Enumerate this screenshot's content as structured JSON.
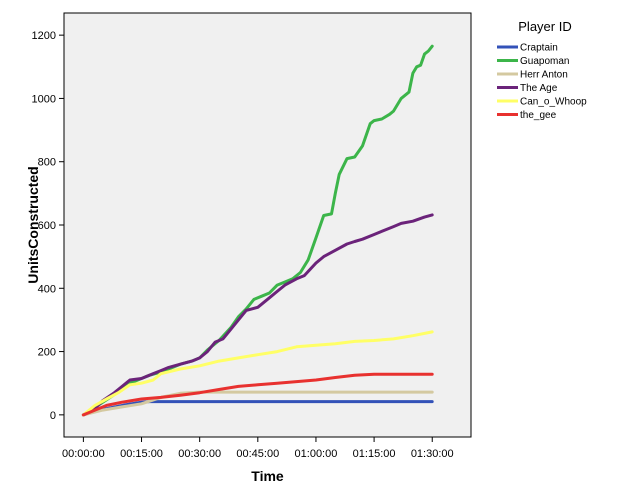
{
  "chart_data": {
    "type": "line",
    "xlabel": "Time",
    "ylabel": "UnitsConstructed",
    "x_ticks": [
      "00:00:00",
      "00:15:00",
      "00:30:00",
      "00:45:00",
      "01:00:00",
      "01:15:00",
      "01:30:00"
    ],
    "x_tick_minutes": [
      0,
      15,
      30,
      45,
      60,
      75,
      90
    ],
    "y_ticks": [
      "0",
      "200",
      "400",
      "600",
      "800",
      "1000",
      "1200"
    ],
    "xlim": [
      -5,
      100
    ],
    "ylim": [
      -70,
      1270
    ],
    "legend": {
      "title": "Player ID",
      "position": "right"
    },
    "series": [
      {
        "name": "Craptain",
        "color": "#3352b8",
        "x": [
          0,
          3,
          7,
          11,
          15,
          17,
          20,
          30,
          45,
          60,
          75,
          90
        ],
        "y": [
          0,
          12,
          22,
          32,
          40,
          42,
          42,
          42,
          42,
          42,
          42,
          42
        ]
      },
      {
        "name": "Guapoman",
        "color": "#3cb54a",
        "x": [
          0,
          5,
          10,
          12,
          15,
          17,
          20,
          22,
          25,
          28,
          30,
          32,
          35,
          38,
          40,
          42,
          44,
          46,
          48,
          50,
          52,
          54,
          56,
          58,
          60,
          62,
          64,
          65,
          66,
          68,
          70,
          72,
          74,
          75,
          77,
          79,
          80,
          82,
          84,
          85,
          86,
          87,
          88,
          89,
          90
        ],
        "y": [
          0,
          40,
          80,
          100,
          115,
          125,
          135,
          145,
          160,
          170,
          180,
          205,
          235,
          275,
          310,
          335,
          365,
          375,
          385,
          410,
          420,
          430,
          450,
          490,
          560,
          630,
          635,
          700,
          760,
          810,
          815,
          850,
          920,
          930,
          935,
          950,
          960,
          1000,
          1020,
          1080,
          1100,
          1105,
          1140,
          1150,
          1165
        ]
      },
      {
        "name": "Herr Anton",
        "color": "#d4c9a0",
        "x": [
          0,
          5,
          10,
          15,
          20,
          25,
          30,
          45,
          60,
          75,
          90
        ],
        "y": [
          0,
          15,
          25,
          35,
          55,
          68,
          72,
          72,
          72,
          72,
          72
        ]
      },
      {
        "name": "The Age",
        "color": "#6b237a",
        "x": [
          0,
          3,
          5,
          8,
          10,
          12,
          15,
          18,
          20,
          22,
          25,
          28,
          30,
          32,
          34,
          36,
          38,
          40,
          42,
          45,
          48,
          50,
          52,
          55,
          57,
          60,
          62,
          65,
          68,
          70,
          72,
          75,
          78,
          80,
          82,
          85,
          88,
          90
        ],
        "y": [
          0,
          20,
          45,
          70,
          90,
          110,
          115,
          130,
          140,
          150,
          160,
          170,
          180,
          200,
          230,
          240,
          270,
          300,
          330,
          340,
          370,
          390,
          410,
          430,
          440,
          480,
          500,
          520,
          540,
          548,
          555,
          570,
          585,
          595,
          605,
          612,
          625,
          632
        ]
      },
      {
        "name": "Can_o_Whoop",
        "color": "#ffff66",
        "x": [
          0,
          3,
          6,
          9,
          12,
          15,
          18,
          20,
          25,
          30,
          35,
          40,
          45,
          50,
          55,
          60,
          65,
          70,
          75,
          80,
          85,
          90
        ],
        "y": [
          0,
          30,
          50,
          70,
          95,
          100,
          110,
          130,
          145,
          155,
          170,
          180,
          190,
          200,
          215,
          220,
          225,
          232,
          235,
          240,
          250,
          262
        ]
      },
      {
        "name": "the_gee",
        "color": "#e8312f",
        "x": [
          0,
          3,
          6,
          10,
          15,
          20,
          25,
          30,
          35,
          40,
          45,
          50,
          55,
          60,
          65,
          70,
          75,
          80,
          85,
          90
        ],
        "y": [
          0,
          15,
          30,
          40,
          50,
          55,
          62,
          70,
          80,
          90,
          95,
          100,
          105,
          110,
          118,
          125,
          128,
          128,
          128,
          128
        ]
      }
    ]
  }
}
